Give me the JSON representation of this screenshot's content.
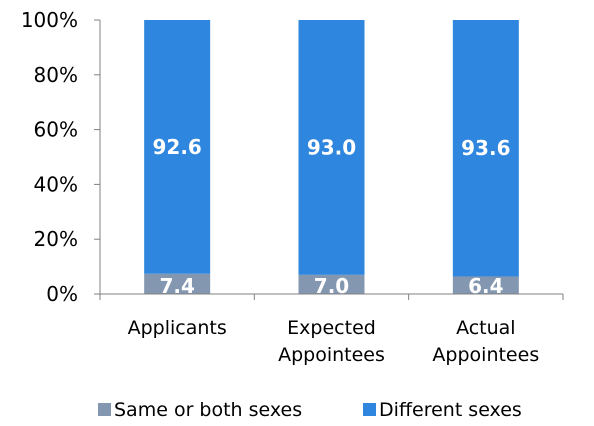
{
  "chart_data": {
    "type": "bar",
    "stacked": true,
    "categories": [
      [
        "Applicants"
      ],
      [
        "Expected",
        "Appointees"
      ],
      [
        "Actual",
        "Appointees"
      ]
    ],
    "series": [
      {
        "name": "Same or both sexes",
        "values": [
          7.4,
          7.0,
          6.4
        ],
        "labels": [
          "7.4",
          "7.0",
          "6.4"
        ],
        "color": "#8497b0"
      },
      {
        "name": "Different sexes",
        "values": [
          92.6,
          93.0,
          93.6
        ],
        "labels": [
          "92.6",
          "93.0",
          "93.6"
        ],
        "color": "#2e86de"
      }
    ],
    "ylim": [
      0,
      100
    ],
    "yticks": [
      "0%",
      "20%",
      "40%",
      "60%",
      "80%",
      "100%"
    ],
    "grid": false,
    "legend_position": "bottom"
  }
}
